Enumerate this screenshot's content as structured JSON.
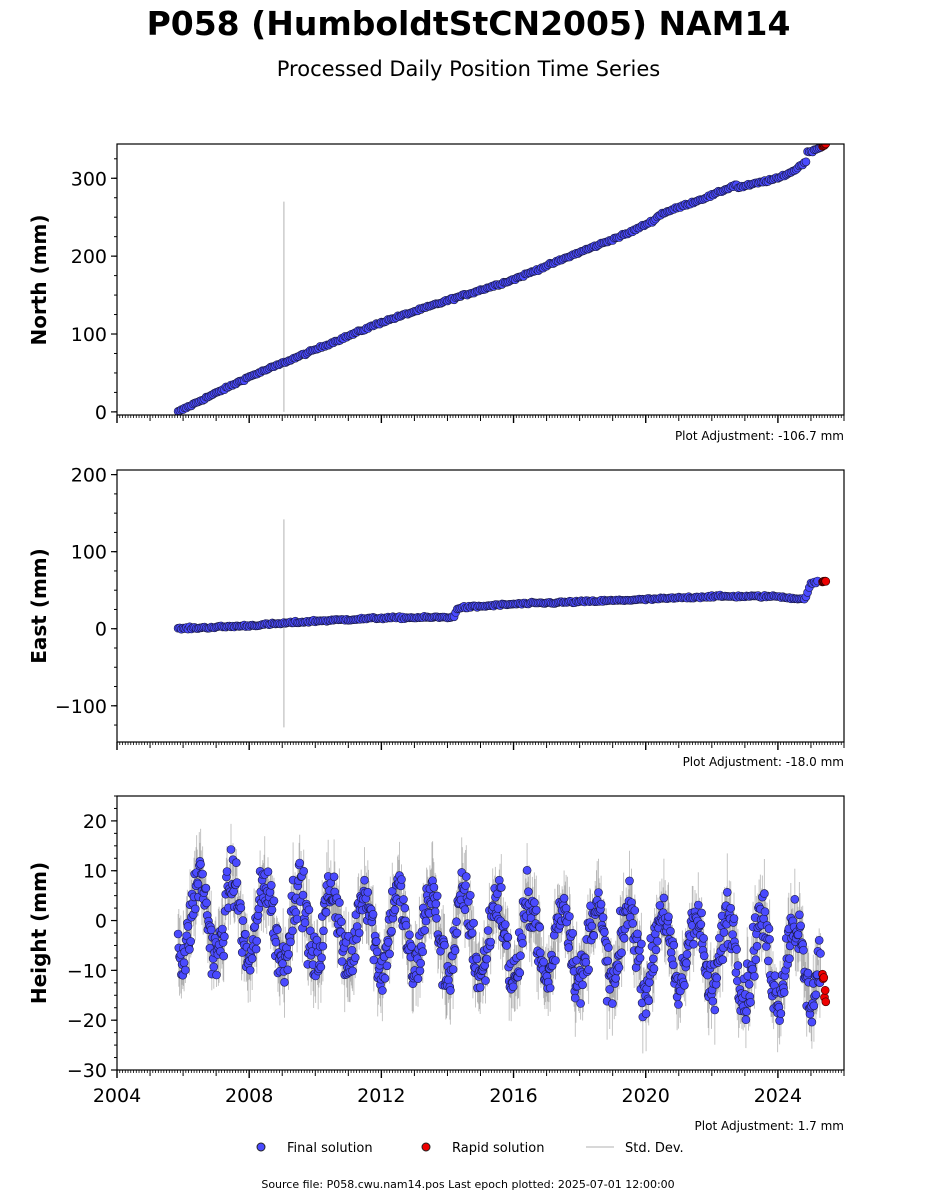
{
  "title": "P058 (HumboldtStCN2005) NAM14",
  "subtitle": "Processed Daily Position Time Series",
  "footer": "Source file: P058.cwu.nam14.pos  Last epoch plotted: 2025-07-01 12:00:00",
  "colors": {
    "final": "#4a4aff",
    "rapid": "#ee0000",
    "std": "#cccccc",
    "axis": "#000000"
  },
  "legend": [
    {
      "label": "Final solution",
      "color": "#4a4aff"
    },
    {
      "label": "Rapid solution",
      "color": "#ee0000"
    },
    {
      "label": "Std. Dev.",
      "color": "#cccccc"
    }
  ],
  "chart_data": [
    {
      "type": "scatter",
      "ylabel": "North (mm)",
      "xlim": [
        2004,
        2026
      ],
      "ylim": [
        -4,
        344
      ],
      "yticks": [
        0,
        100,
        200,
        300
      ],
      "xticks": [
        2004,
        2008,
        2012,
        2016,
        2020,
        2024
      ],
      "show_xtick_labels": false,
      "adjustment": "Plot Adjustment: -106.7 mm",
      "outlier": {
        "x": 2009.05,
        "y_low": 0,
        "y_high": 270
      },
      "series": [
        {
          "kind": "final",
          "x": [
            2005.85,
            2006.5,
            2008.0,
            2010.0,
            2012.0,
            2014.0,
            2016.0,
            2018.0,
            2019.5,
            2020.2,
            2020.5,
            2022.0,
            2022.75,
            2022.8,
            2024.0,
            2024.5,
            2024.85,
            2024.9,
            2025.3
          ],
          "y": [
            0,
            14,
            45,
            80,
            115,
            143,
            170,
            205,
            230,
            245,
            255,
            278,
            292,
            288,
            300,
            310,
            322,
            333,
            340
          ]
        },
        {
          "kind": "rapid",
          "x": [
            2025.35,
            2025.4,
            2025.45
          ],
          "y": [
            341,
            343,
            344
          ]
        }
      ]
    },
    {
      "type": "scatter",
      "ylabel": "East (mm)",
      "xlim": [
        2004,
        2026
      ],
      "ylim": [
        -147,
        206
      ],
      "yticks": [
        -100,
        0,
        100,
        200
      ],
      "xticks": [
        2004,
        2008,
        2012,
        2016,
        2020,
        2024
      ],
      "show_xtick_labels": false,
      "adjustment": "Plot Adjustment: -18.0 mm",
      "outlier": {
        "x": 2009.05,
        "y_low": -128,
        "y_high": 142
      },
      "series": [
        {
          "kind": "final",
          "x": [
            2005.85,
            2008.0,
            2010.0,
            2012.0,
            2014.2,
            2014.3,
            2016.0,
            2018.0,
            2020.0,
            2022.0,
            2024.0,
            2024.8,
            2025.0,
            2025.2
          ],
          "y": [
            0,
            4,
            10,
            14,
            15,
            27,
            32,
            35,
            38,
            42,
            42,
            38,
            58,
            61
          ]
        },
        {
          "kind": "rapid",
          "x": [
            2025.35,
            2025.45
          ],
          "y": [
            61,
            62
          ]
        }
      ]
    },
    {
      "type": "scatter",
      "ylabel": "Height (mm)",
      "xlim": [
        2004,
        2026
      ],
      "ylim": [
        -30,
        25
      ],
      "yticks": [
        -30,
        -20,
        -10,
        0,
        10,
        20
      ],
      "xticks": [
        2004,
        2008,
        2012,
        2016,
        2020,
        2024
      ],
      "xtick_labels": [
        "2004",
        "2008",
        "2012",
        "2016",
        "2020",
        "2024"
      ],
      "show_xtick_labels": true,
      "adjustment": "Plot Adjustment: 1.7 mm",
      "seasonal": {
        "start": 2005.85,
        "end": 2025.3,
        "mean_start": 1,
        "mean_end": -8,
        "amplitude": 8,
        "noise": 5,
        "peak_phase": 0.5
      },
      "series": [
        {
          "kind": "final",
          "x": [
            2005.85,
            2006.5,
            2007.0,
            2008.0,
            2010.0,
            2012.0,
            2014.0,
            2016.0,
            2018.0,
            2020.0,
            2022.0,
            2024.0,
            2025.2
          ],
          "y": [
            -3,
            12,
            -8,
            5,
            0,
            3,
            8,
            5,
            -12,
            -3,
            -5,
            -8,
            -20
          ]
        },
        {
          "kind": "rapid",
          "x": [
            2025.35,
            2025.4,
            2025.45
          ],
          "y": [
            -10,
            -14,
            -17
          ]
        }
      ]
    }
  ]
}
